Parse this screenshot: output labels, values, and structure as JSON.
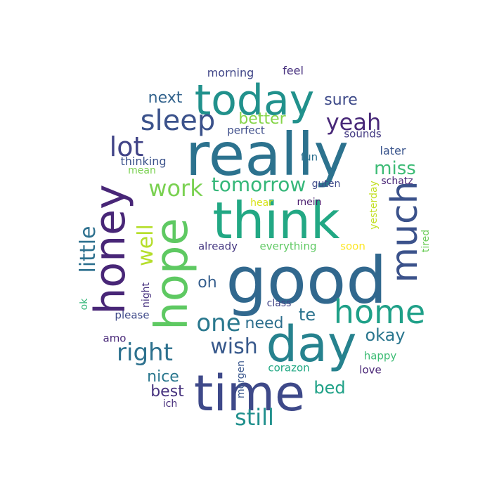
{
  "words": [
    {
      "text": "good",
      "color": "#31688e",
      "vertical": false
    },
    {
      "text": "really",
      "color": "#2c728e",
      "vertical": false
    },
    {
      "text": "think",
      "color": "#22a884",
      "vertical": false
    },
    {
      "text": "time",
      "color": "#3e4989",
      "vertical": false
    },
    {
      "text": "day",
      "color": "#26828e",
      "vertical": false
    },
    {
      "text": "hope",
      "color": "#5ec962",
      "vertical": true
    },
    {
      "text": "honey",
      "color": "#482677",
      "vertical": true
    },
    {
      "text": "today",
      "color": "#21918c",
      "vertical": false
    },
    {
      "text": "much",
      "color": "#3b528b",
      "vertical": true
    },
    {
      "text": "home",
      "color": "#1fa088",
      "vertical": false
    },
    {
      "text": "sleep",
      "color": "#3b528b",
      "vertical": false
    },
    {
      "text": "yeah",
      "color": "#482878",
      "vertical": false
    },
    {
      "text": "lot",
      "color": "#414487",
      "vertical": false
    },
    {
      "text": "work",
      "color": "#7ad151",
      "vertical": false
    },
    {
      "text": "tomorrow",
      "color": "#35b779",
      "vertical": false
    },
    {
      "text": "miss",
      "color": "#3cbb75",
      "vertical": false
    },
    {
      "text": "one",
      "color": "#2a788e",
      "vertical": false
    },
    {
      "text": "right",
      "color": "#2d718e",
      "vertical": false
    },
    {
      "text": "wish",
      "color": "#38598c",
      "vertical": false
    },
    {
      "text": "still",
      "color": "#21908d",
      "vertical": false
    },
    {
      "text": "well",
      "color": "#b5de2b",
      "vertical": true
    },
    {
      "text": "little",
      "color": "#2d708e",
      "vertical": true
    },
    {
      "text": "next",
      "color": "#33638d",
      "vertical": false
    },
    {
      "text": "sure",
      "color": "#3e4a89",
      "vertical": false
    },
    {
      "text": "better",
      "color": "#86d549",
      "vertical": false
    },
    {
      "text": "need",
      "color": "#2e6f8e",
      "vertical": false
    },
    {
      "text": "te",
      "color": "#2c738e",
      "vertical": false
    },
    {
      "text": "okay",
      "color": "#2a768e",
      "vertical": false
    },
    {
      "text": "oh",
      "color": "#355e8d",
      "vertical": false
    },
    {
      "text": "bed",
      "color": "#1fa187",
      "vertical": false
    },
    {
      "text": "nice",
      "color": "#2a778e",
      "vertical": false
    },
    {
      "text": "best",
      "color": "#46327e",
      "vertical": false
    },
    {
      "text": "morning",
      "color": "#404688",
      "vertical": false
    },
    {
      "text": "feel",
      "color": "#46307e",
      "vertical": false
    },
    {
      "text": "perfect",
      "color": "#3d4d8a",
      "vertical": false
    },
    {
      "text": "sounds",
      "color": "#443a83",
      "vertical": false
    },
    {
      "text": "later",
      "color": "#3a548c",
      "vertical": false
    },
    {
      "text": "thinking",
      "color": "#3b528b",
      "vertical": false
    },
    {
      "text": "mean",
      "color": "#7ad151",
      "vertical": false
    },
    {
      "text": "fun",
      "color": "#2d708e",
      "vertical": false
    },
    {
      "text": "guten",
      "color": "#3e4a89",
      "vertical": false
    },
    {
      "text": "schatz",
      "color": "#482576",
      "vertical": false
    },
    {
      "text": "hear",
      "color": "#d8e219",
      "vertical": false
    },
    {
      "text": "mein",
      "color": "#481b6d",
      "vertical": false
    },
    {
      "text": "yesterday",
      "color": "#c2df23",
      "vertical": true
    },
    {
      "text": "tired",
      "color": "#6ccd5a",
      "vertical": true
    },
    {
      "text": "already",
      "color": "#453781",
      "vertical": false
    },
    {
      "text": "everything",
      "color": "#5ec962",
      "vertical": false
    },
    {
      "text": "soon",
      "color": "#fde725",
      "vertical": false
    },
    {
      "text": "night",
      "color": "#46307e",
      "vertical": true
    },
    {
      "text": "class",
      "color": "#414487",
      "vertical": false
    },
    {
      "text": "ok",
      "color": "#35b779",
      "vertical": true
    },
    {
      "text": "please",
      "color": "#3e4989",
      "vertical": false
    },
    {
      "text": "amo",
      "color": "#482878",
      "vertical": false
    },
    {
      "text": "morgen",
      "color": "#39568c",
      "vertical": true
    },
    {
      "text": "happy",
      "color": "#3cbc74",
      "vertical": false
    },
    {
      "text": "corazon",
      "color": "#22a884",
      "vertical": false
    },
    {
      "text": "love",
      "color": "#482475",
      "vertical": false
    },
    {
      "text": "ich",
      "color": "#472d7b",
      "vertical": false
    }
  ]
}
